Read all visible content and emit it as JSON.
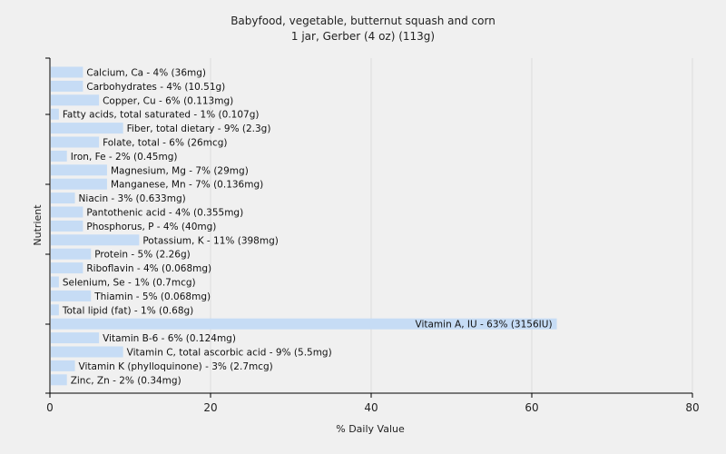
{
  "chart_data": {
    "type": "bar",
    "orientation": "horizontal",
    "title": "Babyfood, vegetable, butternut squash and corn",
    "subtitle": "1 jar, Gerber (4 oz) (113g)",
    "xlabel": "% Daily Value",
    "ylabel": "Nutrient",
    "xlim": [
      0,
      80
    ],
    "xticks": [
      "0",
      "20",
      "40",
      "60",
      "80"
    ],
    "grid": true,
    "bar_color": "#c6dcf5",
    "categories": [
      "Calcium, Ca - 4% (36mg)",
      "Carbohydrates - 4% (10.51g)",
      "Copper, Cu - 6% (0.113mg)",
      "Fatty acids, total saturated - 1% (0.107g)",
      "Fiber, total dietary - 9% (2.3g)",
      "Folate, total - 6% (26mcg)",
      "Iron, Fe - 2% (0.45mg)",
      "Magnesium, Mg - 7% (29mg)",
      "Manganese, Mn - 7% (0.136mg)",
      "Niacin - 3% (0.633mg)",
      "Pantothenic acid - 4% (0.355mg)",
      "Phosphorus, P - 4% (40mg)",
      "Potassium, K - 11% (398mg)",
      "Protein - 5% (2.26g)",
      "Riboflavin - 4% (0.068mg)",
      "Selenium, Se - 1% (0.7mcg)",
      "Thiamin - 5% (0.068mg)",
      "Total lipid (fat) - 1% (0.68g)",
      "Vitamin A, IU - 63% (3156IU)",
      "Vitamin B-6 - 6% (0.124mg)",
      "Vitamin C, total ascorbic acid - 9% (5.5mg)",
      "Vitamin K (phylloquinone) - 3% (2.7mcg)",
      "Zinc, Zn - 2% (0.34mg)"
    ],
    "values": [
      4,
      4,
      6,
      1,
      9,
      6,
      2,
      7,
      7,
      3,
      4,
      4,
      11,
      5,
      4,
      1,
      5,
      1,
      63,
      6,
      9,
      3,
      2
    ]
  }
}
